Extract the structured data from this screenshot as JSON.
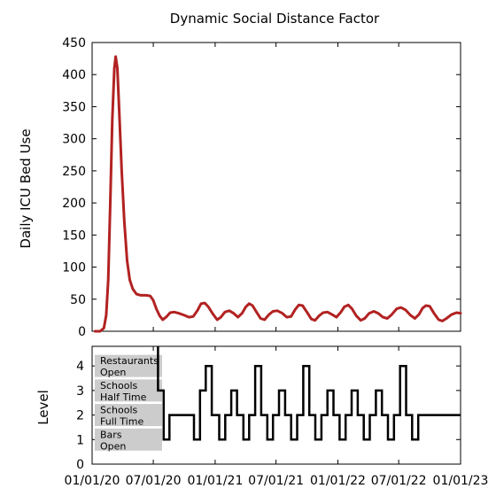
{
  "chart_data": [
    {
      "type": "line",
      "title": "Dynamic Social Distance Factor",
      "xlabel": "",
      "ylabel": "Daily ICU Bed Use",
      "xlim": [
        "2020-01-01",
        "2023-01-01"
      ],
      "ylim": [
        0,
        450
      ],
      "yticks": [
        0,
        50,
        100,
        150,
        200,
        250,
        300,
        350,
        400,
        450
      ],
      "grid": false,
      "line_color": "#b22222",
      "series": [
        {
          "points": [
            [
              "2020-01-10",
              0
            ],
            [
              "2020-01-25",
              0
            ],
            [
              "2020-02-05",
              5
            ],
            [
              "2020-02-12",
              25
            ],
            [
              "2020-02-18",
              80
            ],
            [
              "2020-02-24",
              200
            ],
            [
              "2020-03-01",
              330
            ],
            [
              "2020-03-07",
              410
            ],
            [
              "2020-03-11",
              428
            ],
            [
              "2020-03-16",
              410
            ],
            [
              "2020-03-22",
              340
            ],
            [
              "2020-03-29",
              250
            ],
            [
              "2020-04-06",
              170
            ],
            [
              "2020-04-14",
              110
            ],
            [
              "2020-04-22",
              80
            ],
            [
              "2020-05-01",
              66
            ],
            [
              "2020-05-12",
              58
            ],
            [
              "2020-05-25",
              56
            ],
            [
              "2020-06-10",
              56
            ],
            [
              "2020-06-22",
              55
            ],
            [
              "2020-07-01",
              48
            ],
            [
              "2020-07-10",
              35
            ],
            [
              "2020-07-20",
              24
            ],
            [
              "2020-07-29",
              18
            ],
            [
              "2020-08-08",
              22
            ],
            [
              "2020-08-20",
              29
            ],
            [
              "2020-09-01",
              30
            ],
            [
              "2020-09-15",
              28
            ],
            [
              "2020-10-01",
              25
            ],
            [
              "2020-10-15",
              22
            ],
            [
              "2020-10-28",
              23
            ],
            [
              "2020-11-10",
              33
            ],
            [
              "2020-11-20",
              43
            ],
            [
              "2020-12-01",
              44
            ],
            [
              "2020-12-12",
              38
            ],
            [
              "2020-12-25",
              27
            ],
            [
              "2021-01-07",
              18
            ],
            [
              "2021-01-18",
              22
            ],
            [
              "2021-01-30",
              30
            ],
            [
              "2021-02-12",
              32
            ],
            [
              "2021-02-25",
              28
            ],
            [
              "2021-03-10",
              22
            ],
            [
              "2021-03-22",
              28
            ],
            [
              "2021-04-02",
              38
            ],
            [
              "2021-04-12",
              43
            ],
            [
              "2021-04-22",
              40
            ],
            [
              "2021-05-04",
              30
            ],
            [
              "2021-05-16",
              20
            ],
            [
              "2021-05-28",
              18
            ],
            [
              "2021-06-10",
              26
            ],
            [
              "2021-06-22",
              31
            ],
            [
              "2021-07-05",
              32
            ],
            [
              "2021-07-20",
              28
            ],
            [
              "2021-08-02",
              22
            ],
            [
              "2021-08-15",
              23
            ],
            [
              "2021-08-27",
              34
            ],
            [
              "2021-09-07",
              41
            ],
            [
              "2021-09-18",
              40
            ],
            [
              "2021-10-01",
              30
            ],
            [
              "2021-10-14",
              19
            ],
            [
              "2021-10-25",
              17
            ],
            [
              "2021-11-06",
              24
            ],
            [
              "2021-11-18",
              29
            ],
            [
              "2021-12-01",
              30
            ],
            [
              "2021-12-15",
              26
            ],
            [
              "2021-12-28",
              22
            ],
            [
              "2022-01-10",
              30
            ],
            [
              "2022-01-20",
              38
            ],
            [
              "2022-02-01",
              41
            ],
            [
              "2022-02-12",
              35
            ],
            [
              "2022-02-25",
              24
            ],
            [
              "2022-03-10",
              17
            ],
            [
              "2022-03-22",
              20
            ],
            [
              "2022-04-04",
              28
            ],
            [
              "2022-04-18",
              31
            ],
            [
              "2022-05-01",
              28
            ],
            [
              "2022-05-15",
              22
            ],
            [
              "2022-05-28",
              20
            ],
            [
              "2022-06-10",
              26
            ],
            [
              "2022-06-25",
              35
            ],
            [
              "2022-07-08",
              37
            ],
            [
              "2022-07-22",
              33
            ],
            [
              "2022-08-05",
              25
            ],
            [
              "2022-08-18",
              20
            ],
            [
              "2022-08-30",
              26
            ],
            [
              "2022-09-10",
              36
            ],
            [
              "2022-09-20",
              40
            ],
            [
              "2022-10-01",
              39
            ],
            [
              "2022-10-14",
              28
            ],
            [
              "2022-10-28",
              18
            ],
            [
              "2022-11-08",
              16
            ],
            [
              "2022-11-20",
              20
            ],
            [
              "2022-12-05",
              26
            ],
            [
              "2022-12-20",
              29
            ],
            [
              "2023-01-01",
              28
            ]
          ]
        }
      ]
    },
    {
      "type": "line",
      "title": "",
      "xlabel": "",
      "ylabel": "Level",
      "xlim": [
        "2020-01-01",
        "2023-01-01"
      ],
      "ylim": [
        0,
        4.8
      ],
      "yticks": [
        0,
        1,
        2,
        3,
        4
      ],
      "xticks": [
        "01/01/20",
        "07/01/20",
        "01/01/21",
        "07/01/21",
        "01/01/22",
        "07/01/22",
        "01/01/23"
      ],
      "xtick_dates": [
        "2020-01-01",
        "2020-07-01",
        "2021-01-01",
        "2021-07-01",
        "2022-01-01",
        "2022-07-01",
        "2023-01-01"
      ],
      "grid": false,
      "line_color": "#000000",
      "step": true,
      "level_labels": [
        {
          "level": 4,
          "lines": [
            "Restaurants",
            "Open"
          ]
        },
        {
          "level": 3,
          "lines": [
            "Schools",
            "Half Time"
          ]
        },
        {
          "level": 2,
          "lines": [
            "Schools",
            "Full Time"
          ]
        },
        {
          "level": 1,
          "lines": [
            "Bars",
            "Open"
          ]
        }
      ],
      "series": [
        {
          "points": [
            [
              "2020-07-15",
              4.8
            ],
            [
              "2020-07-15",
              3
            ],
            [
              "2020-08-01",
              3
            ],
            [
              "2020-08-01",
              1
            ],
            [
              "2020-08-18",
              1
            ],
            [
              "2020-08-18",
              2
            ],
            [
              "2020-10-30",
              2
            ],
            [
              "2020-10-30",
              1
            ],
            [
              "2020-11-17",
              1
            ],
            [
              "2020-11-17",
              3
            ],
            [
              "2020-12-04",
              3
            ],
            [
              "2020-12-04",
              4
            ],
            [
              "2020-12-22",
              4
            ],
            [
              "2020-12-22",
              2
            ],
            [
              "2021-01-13",
              2
            ],
            [
              "2021-01-13",
              1
            ],
            [
              "2021-01-31",
              1
            ],
            [
              "2021-01-31",
              2
            ],
            [
              "2021-02-18",
              2
            ],
            [
              "2021-02-18",
              3
            ],
            [
              "2021-03-07",
              3
            ],
            [
              "2021-03-07",
              2
            ],
            [
              "2021-03-26",
              2
            ],
            [
              "2021-03-26",
              1
            ],
            [
              "2021-04-12",
              1
            ],
            [
              "2021-04-12",
              2
            ],
            [
              "2021-04-30",
              2
            ],
            [
              "2021-04-30",
              4
            ],
            [
              "2021-05-18",
              4
            ],
            [
              "2021-05-18",
              2
            ],
            [
              "2021-06-05",
              2
            ],
            [
              "2021-06-05",
              1
            ],
            [
              "2021-06-22",
              1
            ],
            [
              "2021-06-22",
              2
            ],
            [
              "2021-07-10",
              2
            ],
            [
              "2021-07-10",
              3
            ],
            [
              "2021-07-28",
              3
            ],
            [
              "2021-07-28",
              2
            ],
            [
              "2021-08-15",
              2
            ],
            [
              "2021-08-15",
              1
            ],
            [
              "2021-09-02",
              1
            ],
            [
              "2021-09-02",
              2
            ],
            [
              "2021-09-20",
              2
            ],
            [
              "2021-09-20",
              4
            ],
            [
              "2021-10-08",
              4
            ],
            [
              "2021-10-08",
              2
            ],
            [
              "2021-10-26",
              2
            ],
            [
              "2021-10-26",
              1
            ],
            [
              "2021-11-13",
              1
            ],
            [
              "2021-11-13",
              2
            ],
            [
              "2021-12-01",
              2
            ],
            [
              "2021-12-01",
              3
            ],
            [
              "2021-12-19",
              3
            ],
            [
              "2021-12-19",
              2
            ],
            [
              "2022-01-06",
              2
            ],
            [
              "2022-01-06",
              1
            ],
            [
              "2022-01-24",
              1
            ],
            [
              "2022-01-24",
              2
            ],
            [
              "2022-02-11",
              2
            ],
            [
              "2022-02-11",
              3
            ],
            [
              "2022-03-01",
              3
            ],
            [
              "2022-03-01",
              2
            ],
            [
              "2022-03-19",
              2
            ],
            [
              "2022-03-19",
              1
            ],
            [
              "2022-04-06",
              1
            ],
            [
              "2022-04-06",
              2
            ],
            [
              "2022-04-24",
              2
            ],
            [
              "2022-04-24",
              3
            ],
            [
              "2022-05-12",
              3
            ],
            [
              "2022-05-12",
              2
            ],
            [
              "2022-05-30",
              2
            ],
            [
              "2022-05-30",
              1
            ],
            [
              "2022-06-17",
              1
            ],
            [
              "2022-06-17",
              2
            ],
            [
              "2022-07-05",
              2
            ],
            [
              "2022-07-05",
              4
            ],
            [
              "2022-07-23",
              4
            ],
            [
              "2022-07-23",
              2
            ],
            [
              "2022-08-10",
              2
            ],
            [
              "2022-08-10",
              1
            ],
            [
              "2022-08-28",
              1
            ],
            [
              "2022-08-28",
              2
            ],
            [
              "2023-01-01",
              2
            ]
          ]
        }
      ]
    }
  ]
}
